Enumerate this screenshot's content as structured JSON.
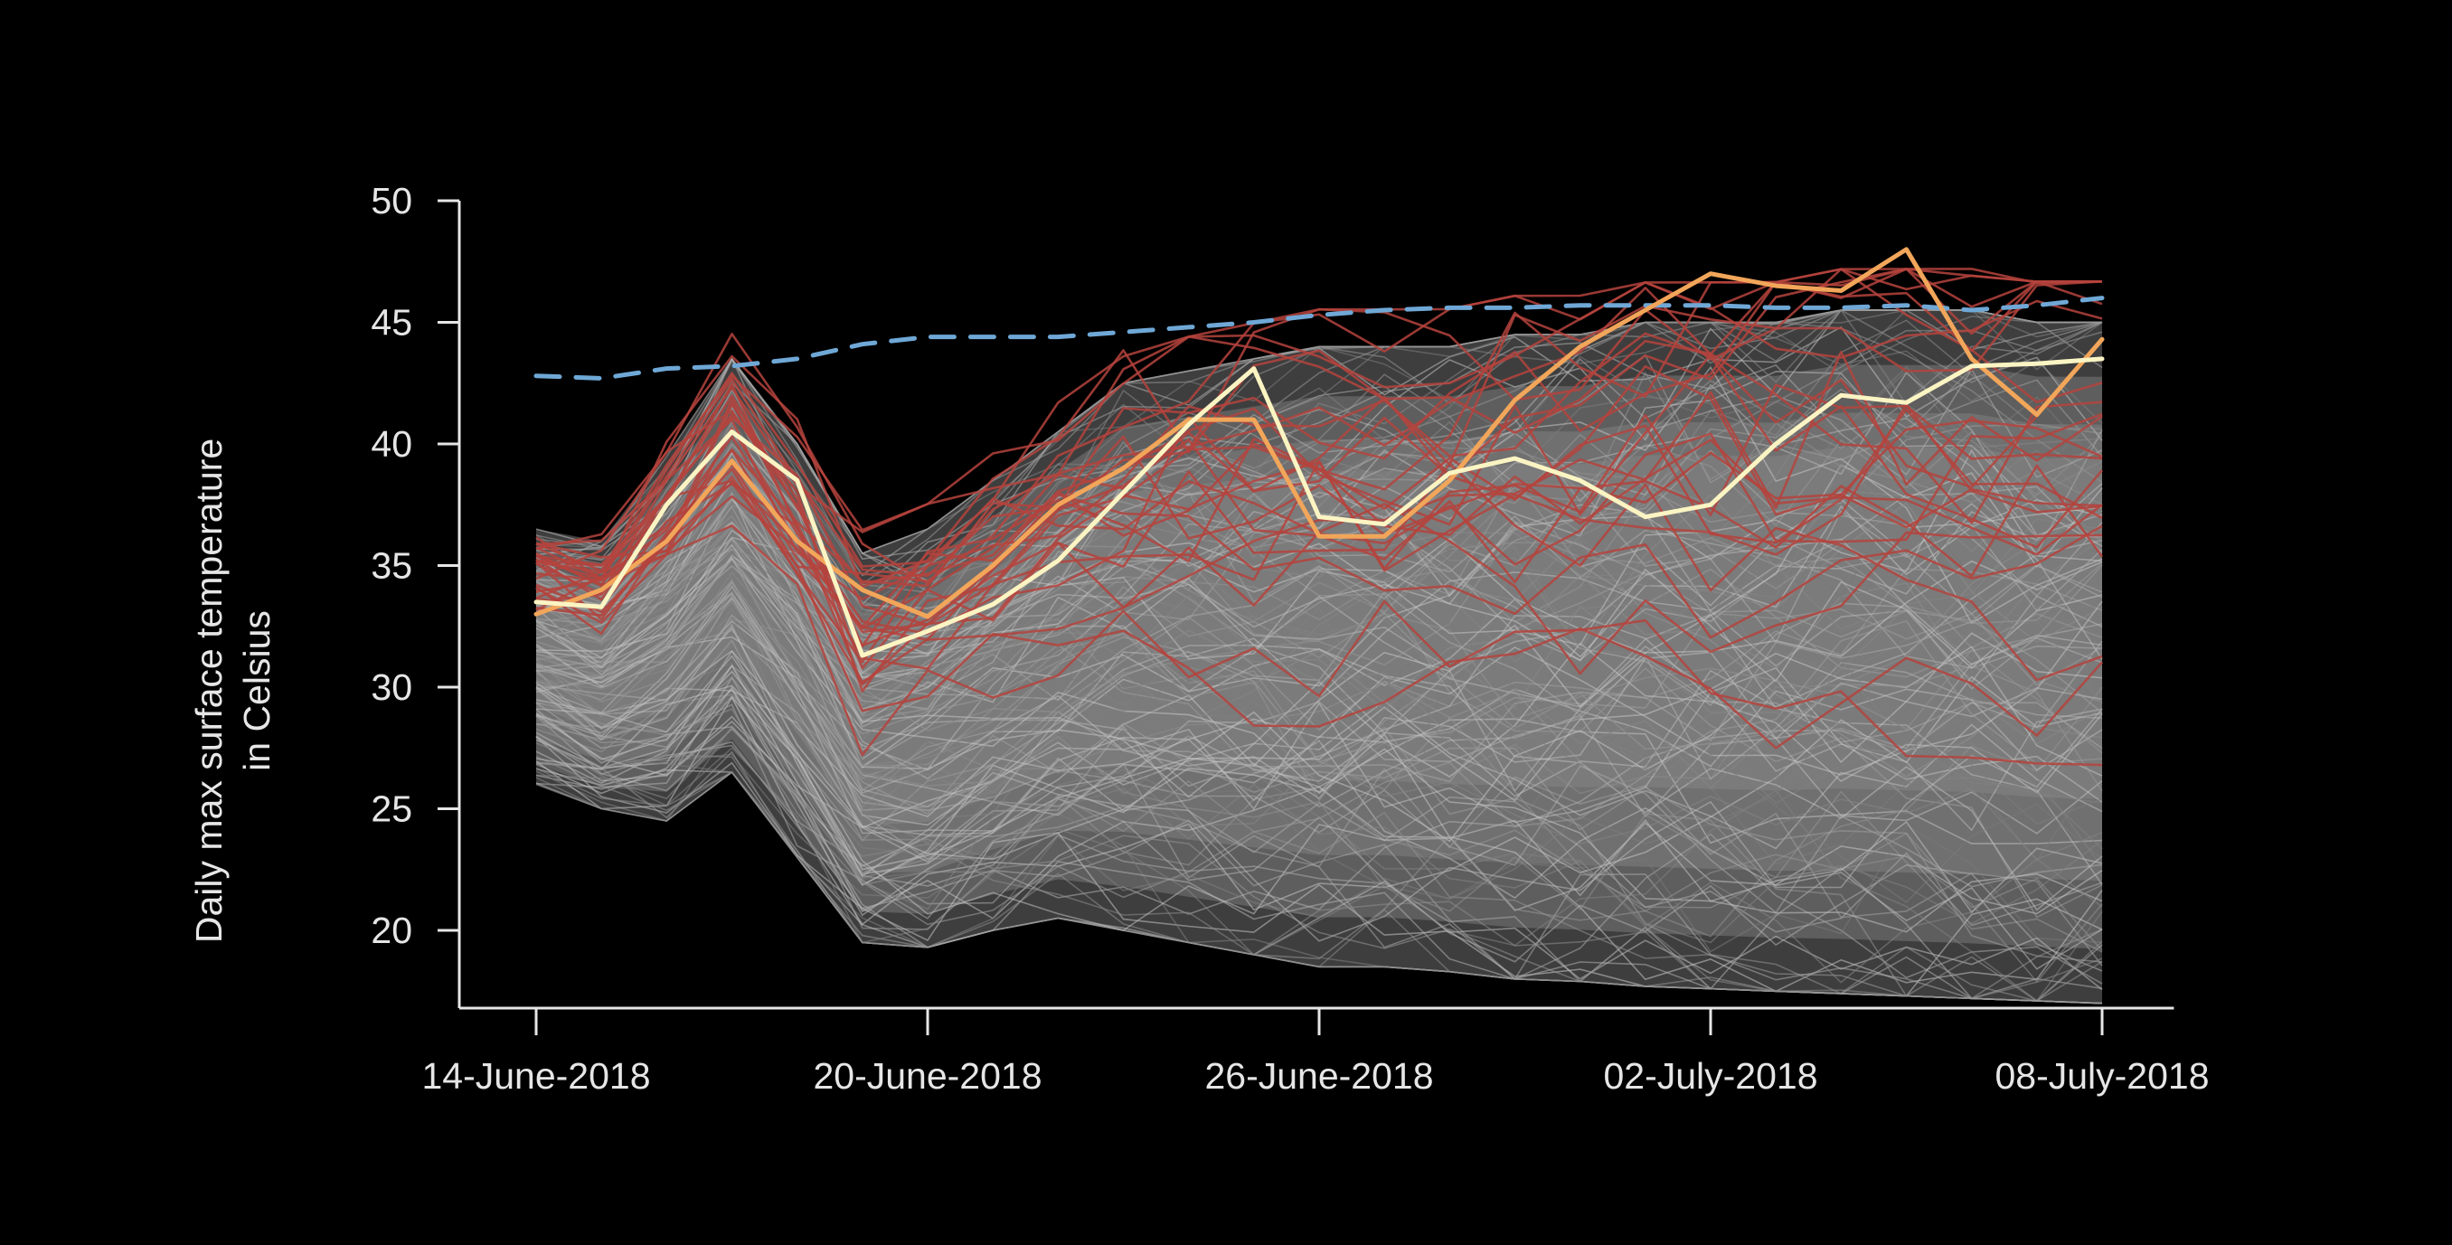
{
  "chart_data": {
    "type": "line",
    "title": "",
    "xlabel": "",
    "ylabel": "Daily max surface temperature in Celsius",
    "ylabel_lines": [
      "Daily max surface temperature",
      "in Celsius"
    ],
    "ylim": [
      17,
      50
    ],
    "y_ticks": [
      50,
      45,
      40,
      35,
      30,
      25,
      20
    ],
    "x_tick_labels": [
      "14-June-2018",
      "20-June-2018",
      "26-June-2018",
      "02-July-2018",
      "08-July-2018"
    ],
    "x_tick_days": [
      0,
      6,
      12,
      18,
      24
    ],
    "x_range_days": [
      -1.2,
      25.1
    ],
    "grid": false,
    "legend": "none",
    "colors": {
      "background": "#000000",
      "axis": "#e6e6e6",
      "ensemble": "#9a9a9a",
      "hot_members": "#b5433d",
      "orange_line": "#f2a65a",
      "cream_line": "#fbf4c3",
      "dashed_threshold": "#6fa8d6"
    },
    "ensemble_envelope": {
      "name": "Ensemble members (gray)",
      "x": [
        0,
        1,
        2,
        3,
        4,
        5,
        6,
        7,
        8,
        9,
        10,
        11,
        12,
        13,
        14,
        15,
        16,
        17,
        18,
        19,
        20,
        21,
        22,
        23,
        24
      ],
      "upper": [
        36.5,
        36.0,
        39.5,
        43.5,
        40.0,
        35.5,
        36.5,
        38.5,
        40.5,
        42.5,
        43.0,
        43.5,
        44.0,
        44.0,
        44.0,
        44.5,
        44.5,
        45.0,
        45.0,
        45.0,
        45.5,
        45.5,
        45.5,
        45.0,
        45.0
      ],
      "lower": [
        26.0,
        25.0,
        24.5,
        26.5,
        23.0,
        19.5,
        19.3,
        20.0,
        20.5,
        20.0,
        19.5,
        19.0,
        18.5,
        18.5,
        18.3,
        18.0,
        17.9,
        17.7,
        17.6,
        17.5,
        17.4,
        17.3,
        17.2,
        17.1,
        17.0
      ]
    },
    "series": [
      {
        "name": "dashed threshold",
        "style": "dashed",
        "x": [
          0,
          1,
          2,
          3,
          4,
          5,
          6,
          7,
          8,
          9,
          10,
          11,
          12,
          13,
          14,
          15,
          16,
          17,
          18,
          19,
          20,
          21,
          22,
          23,
          24
        ],
        "values": [
          42.8,
          42.7,
          43.1,
          43.2,
          43.5,
          44.1,
          44.4,
          44.4,
          44.4,
          44.6,
          44.8,
          45.0,
          45.3,
          45.5,
          45.6,
          45.6,
          45.7,
          45.7,
          45.7,
          45.6,
          45.6,
          45.7,
          45.5,
          45.7,
          46.0
        ]
      },
      {
        "name": "orange member",
        "style": "solid",
        "x": [
          0,
          1,
          2,
          3,
          4,
          5,
          6,
          7,
          8,
          9,
          10,
          11,
          12,
          13,
          14,
          15,
          16,
          17,
          18,
          19,
          20,
          21,
          22,
          23,
          24
        ],
        "values": [
          33.0,
          34.0,
          36.0,
          39.3,
          36.0,
          34.0,
          32.9,
          35.0,
          37.5,
          39.0,
          41.0,
          41.0,
          36.2,
          36.2,
          38.5,
          41.8,
          44.0,
          45.5,
          47.0,
          46.5,
          46.3,
          48.0,
          43.5,
          41.2,
          44.3
        ]
      },
      {
        "name": "cream member",
        "style": "solid",
        "x": [
          0,
          1,
          2,
          3,
          4,
          5,
          6,
          7,
          8,
          9,
          10,
          11,
          12,
          13,
          14,
          15,
          16,
          17,
          18,
          19,
          20,
          21,
          22,
          23,
          24
        ],
        "values": [
          33.5,
          33.3,
          37.5,
          40.5,
          38.5,
          31.3,
          32.3,
          33.4,
          35.2,
          38.0,
          40.8,
          43.1,
          37.0,
          36.7,
          38.8,
          39.4,
          38.5,
          37.0,
          37.5,
          40.0,
          42.0,
          41.7,
          43.2,
          43.3,
          43.5
        ]
      }
    ]
  }
}
